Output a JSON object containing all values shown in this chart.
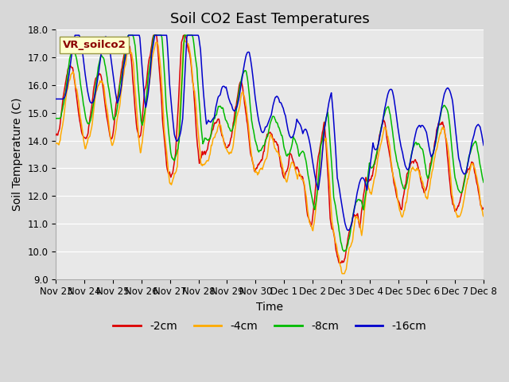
{
  "title": "Soil CO2 East Temperatures",
  "xlabel": "Time",
  "ylabel": "Soil Temperature (C)",
  "ylim": [
    9.0,
    18.0
  ],
  "yticks": [
    9.0,
    10.0,
    11.0,
    12.0,
    13.0,
    14.0,
    15.0,
    16.0,
    17.0,
    18.0
  ],
  "xtick_labels": [
    "Nov 23",
    "Nov 24",
    "Nov 25",
    "Nov 26",
    "Nov 27",
    "Nov 28",
    "Nov 29",
    "Nov 30",
    "Dec 1",
    "Dec 2",
    "Dec 3",
    "Dec 4",
    "Dec 5",
    "Dec 6",
    "Dec 7",
    "Dec 8"
  ],
  "legend_label": "VR_soilco2",
  "series_labels": [
    "-2cm",
    "-4cm",
    "-8cm",
    "-16cm"
  ],
  "series_colors": [
    "#dd0000",
    "#ffaa00",
    "#00bb00",
    "#0000cc"
  ],
  "background_color": "#d8d8d8",
  "plot_bg_color": "#e8e8e8",
  "title_fontsize": 13,
  "axis_fontsize": 10,
  "tick_fontsize": 8.5,
  "legend_fontsize": 10
}
